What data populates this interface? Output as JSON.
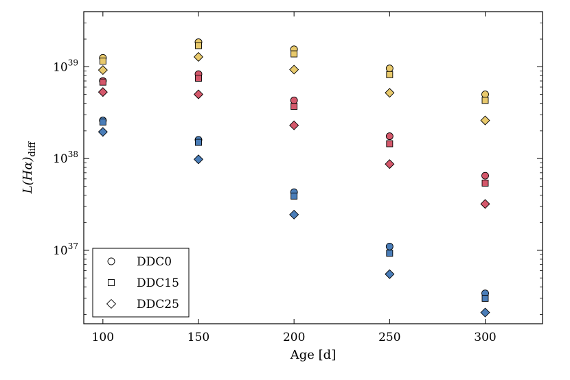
{
  "chart_data": {
    "type": "scatter",
    "title": "",
    "xlabel": "Age [d]",
    "ylabel_main": "L(Hα)",
    "ylabel_sub": "diff",
    "xlim": [
      90,
      330
    ],
    "ylim_log10": [
      36.2,
      39.6
    ],
    "xticks": [
      100,
      150,
      200,
      250,
      300
    ],
    "yticks_exponent": [
      37,
      38,
      39
    ],
    "ytick_base": "10",
    "scale_y": "log",
    "grid": false,
    "legend_position": "lower-left",
    "group_colors": {
      "L": "#e8c96c",
      "M": "#d4586b",
      "S": "#4a7db8"
    },
    "series": [
      {
        "name": "DDC0",
        "marker": "circle",
        "points": [
          {
            "x": 100,
            "y": 1.25e+39,
            "group": "L"
          },
          {
            "x": 100,
            "y": 7e+38,
            "group": "M"
          },
          {
            "x": 100,
            "y": 2.6e+38,
            "group": "S"
          },
          {
            "x": 150,
            "y": 1.85e+39,
            "group": "L"
          },
          {
            "x": 150,
            "y": 8.3e+38,
            "group": "M"
          },
          {
            "x": 150,
            "y": 1.6e+38,
            "group": "S"
          },
          {
            "x": 200,
            "y": 1.55e+39,
            "group": "L"
          },
          {
            "x": 200,
            "y": 4.3e+38,
            "group": "M"
          },
          {
            "x": 200,
            "y": 4.3e+37,
            "group": "S"
          },
          {
            "x": 250,
            "y": 9.6e+38,
            "group": "L"
          },
          {
            "x": 250,
            "y": 1.75e+38,
            "group": "M"
          },
          {
            "x": 250,
            "y": 1.1e+37,
            "group": "S"
          },
          {
            "x": 300,
            "y": 5e+38,
            "group": "L"
          },
          {
            "x": 300,
            "y": 6.5e+37,
            "group": "M"
          },
          {
            "x": 300,
            "y": 3.4e+36,
            "group": "S"
          }
        ]
      },
      {
        "name": "DDC15",
        "marker": "square",
        "points": [
          {
            "x": 100,
            "y": 1.15e+39,
            "group": "L"
          },
          {
            "x": 100,
            "y": 6.8e+38,
            "group": "M"
          },
          {
            "x": 100,
            "y": 2.5e+38,
            "group": "S"
          },
          {
            "x": 150,
            "y": 1.7e+39,
            "group": "L"
          },
          {
            "x": 150,
            "y": 7.5e+38,
            "group": "M"
          },
          {
            "x": 150,
            "y": 1.5e+38,
            "group": "S"
          },
          {
            "x": 200,
            "y": 1.38e+39,
            "group": "L"
          },
          {
            "x": 200,
            "y": 3.7e+38,
            "group": "M"
          },
          {
            "x": 200,
            "y": 3.9e+37,
            "group": "S"
          },
          {
            "x": 250,
            "y": 8.2e+38,
            "group": "L"
          },
          {
            "x": 250,
            "y": 1.45e+38,
            "group": "M"
          },
          {
            "x": 250,
            "y": 9.3e+36,
            "group": "S"
          },
          {
            "x": 300,
            "y": 4.3e+38,
            "group": "L"
          },
          {
            "x": 300,
            "y": 5.4e+37,
            "group": "M"
          },
          {
            "x": 300,
            "y": 3e+36,
            "group": "S"
          }
        ]
      },
      {
        "name": "DDC25",
        "marker": "diamond",
        "points": [
          {
            "x": 100,
            "y": 9.2e+38,
            "group": "L"
          },
          {
            "x": 100,
            "y": 5.3e+38,
            "group": "M"
          },
          {
            "x": 100,
            "y": 1.95e+38,
            "group": "S"
          },
          {
            "x": 150,
            "y": 1.28e+39,
            "group": "L"
          },
          {
            "x": 150,
            "y": 5e+38,
            "group": "M"
          },
          {
            "x": 150,
            "y": 9.8e+37,
            "group": "S"
          },
          {
            "x": 200,
            "y": 9.3e+38,
            "group": "L"
          },
          {
            "x": 200,
            "y": 2.3e+38,
            "group": "M"
          },
          {
            "x": 200,
            "y": 2.45e+37,
            "group": "S"
          },
          {
            "x": 250,
            "y": 5.2e+38,
            "group": "L"
          },
          {
            "x": 250,
            "y": 8.7e+37,
            "group": "M"
          },
          {
            "x": 250,
            "y": 5.5e+36,
            "group": "S"
          },
          {
            "x": 300,
            "y": 2.6e+38,
            "group": "L"
          },
          {
            "x": 300,
            "y": 3.2e+37,
            "group": "M"
          },
          {
            "x": 300,
            "y": 2.1e+36,
            "group": "S"
          }
        ]
      }
    ]
  }
}
